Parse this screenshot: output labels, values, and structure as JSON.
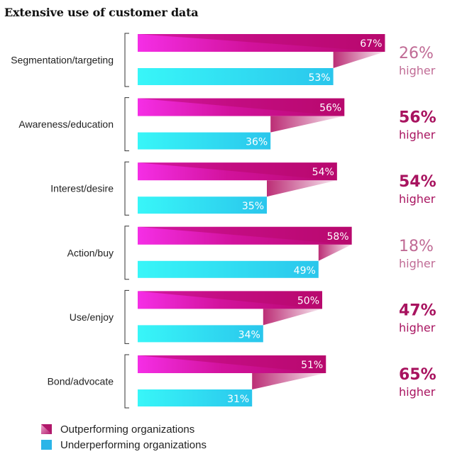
{
  "chart_data": {
    "type": "bar",
    "orientation": "horizontal",
    "title": "Extensive use of customer data",
    "xlabel": "",
    "ylabel": "",
    "xlim": [
      0,
      100
    ],
    "grid": false,
    "legend_position": "bottom-left",
    "categories": [
      "Segmentation/targeting",
      "Awareness/education",
      "Interest/desire",
      "Action/buy",
      "Use/enjoy",
      "Bond/advocate"
    ],
    "series": [
      {
        "name": "Outperforming organizations",
        "values": [
          67,
          56,
          54,
          58,
          50,
          51
        ],
        "labels": [
          "67%",
          "56%",
          "54%",
          "58%",
          "50%",
          "51%"
        ]
      },
      {
        "name": "Underperforming organizations",
        "values": [
          53,
          36,
          35,
          49,
          34,
          31
        ],
        "labels": [
          "53%",
          "36%",
          "35%",
          "49%",
          "34%",
          "31%"
        ]
      }
    ],
    "annotations": [
      {
        "value": "26%",
        "word": "higher",
        "emphasis": false
      },
      {
        "value": "56%",
        "word": "higher",
        "emphasis": true
      },
      {
        "value": "54%",
        "word": "higher",
        "emphasis": true
      },
      {
        "value": "18%",
        "word": "higher",
        "emphasis": false
      },
      {
        "value": "47%",
        "word": "higher",
        "emphasis": true
      },
      {
        "value": "65%",
        "word": "higher",
        "emphasis": true
      }
    ]
  },
  "legend": {
    "items": [
      {
        "label": "Outperforming organizations"
      },
      {
        "label": "Underperforming organizations"
      }
    ]
  },
  "colors": {
    "outperform_start": "#f52ee6",
    "outperform_end": "#b8096e",
    "underperform_start": "#38f6f8",
    "underperform_end": "#2ac6ec",
    "connector": "#b8226e",
    "emphasis_text": "#a8135f",
    "muted_text": "#c06b95",
    "legend_outperform": "#b0176a",
    "legend_underperform": "#2bb5e8"
  }
}
